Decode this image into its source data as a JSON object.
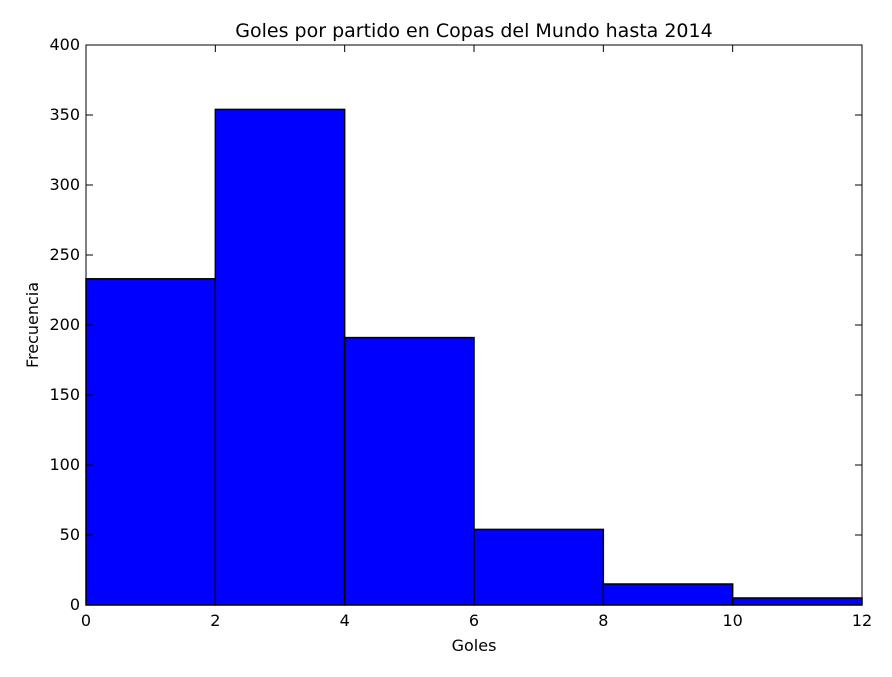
{
  "chart_data": {
    "type": "bar",
    "title": "Goles por partido en Copas del Mundo hasta 2014",
    "xlabel": "Goles",
    "ylabel": "Frecuencia",
    "bins": [
      [
        0,
        2
      ],
      [
        2,
        4
      ],
      [
        4,
        6
      ],
      [
        6,
        8
      ],
      [
        8,
        10
      ],
      [
        10,
        12
      ]
    ],
    "values": [
      233,
      354,
      191,
      54,
      15,
      5
    ],
    "xlim": [
      0,
      12
    ],
    "ylim": [
      0,
      400
    ],
    "xticks": [
      0,
      2,
      4,
      6,
      8,
      10,
      12
    ],
    "yticks": [
      0,
      50,
      100,
      150,
      200,
      250,
      300,
      350,
      400
    ],
    "bar_color": "#0000ff",
    "edge_color": "#000000",
    "grid": false,
    "legend": "none"
  }
}
